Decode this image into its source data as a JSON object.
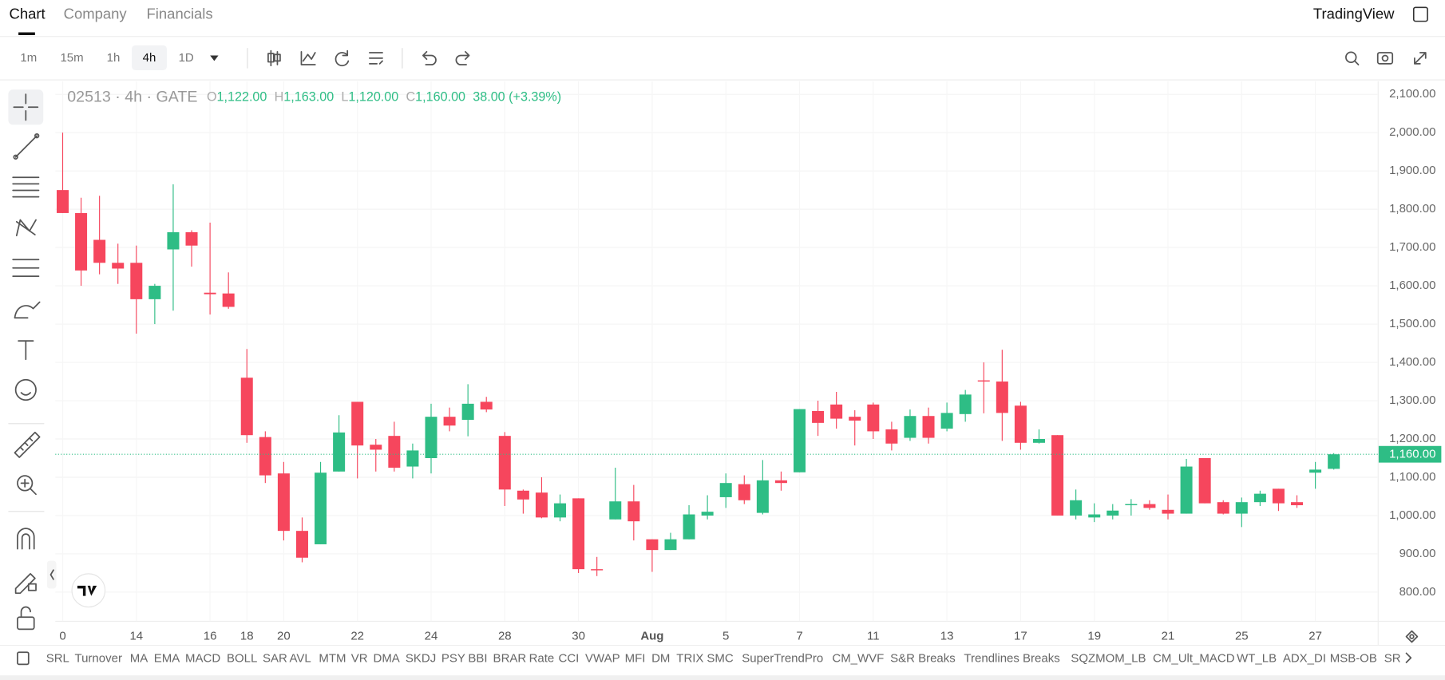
{
  "tabs": [
    "Chart",
    "Company",
    "Financials"
  ],
  "brand": "TradingView",
  "intervals": [
    "1m",
    "15m",
    "1h",
    "4h",
    "1D"
  ],
  "legend": {
    "symbol": "02513 · 4h · GATE",
    "o": "O",
    "open": "1,122.00",
    "h": "H",
    "high": "1,163.00",
    "l": "L",
    "low": "1,120.00",
    "c": "C",
    "close": "1,160.00",
    "change": "38.00 (+3.39%)"
  },
  "indicators": [
    "SRL",
    "Turnover",
    "MA",
    "EMA",
    "MACD",
    "BOLL",
    "SAR",
    "AVL",
    "MTM",
    "VR",
    "DMA",
    "SKDJ",
    "PSY",
    "BBI",
    "BRAR",
    "Rate",
    "CCI",
    "VWAP",
    "MFI",
    "DM",
    "TRIX",
    "SMC",
    "SuperTrendPro",
    "CM_WVF",
    "S&R Breaks",
    "Trendlines Breaks",
    "SQZMOM_LB",
    "CM_Ult_MACD",
    "WT_LB",
    "ADX_DI",
    "MSB-OB",
    "SR"
  ],
  "chart_data": {
    "type": "candlestick",
    "categories": [
      "0",
      null,
      null,
      null,
      "14",
      null,
      null,
      null,
      "16",
      null,
      "18",
      null,
      "20",
      null,
      null,
      null,
      "22",
      null,
      null,
      null,
      "24",
      null,
      null,
      null,
      "28",
      null,
      null,
      null,
      "30",
      null,
      null,
      null,
      "Aug",
      null,
      null,
      null,
      "5",
      null,
      null,
      null,
      "7",
      null,
      null,
      null,
      "11",
      null,
      null,
      null,
      "13",
      null,
      null,
      null,
      "17",
      null,
      null,
      null,
      "19",
      null,
      null,
      null,
      "21",
      null,
      null,
      null,
      "25",
      null,
      null,
      null,
      "27",
      null
    ],
    "open": [
      1850,
      1790,
      1720,
      1660,
      1660,
      1565,
      1695,
      1740,
      1582,
      1580,
      1360,
      1205,
      1110,
      960,
      925,
      1115,
      1297,
      1185,
      1208,
      1128,
      1150,
      1258,
      1250,
      1297,
      1208,
      1065,
      1060,
      995,
      1045,
      860,
      990,
      1037,
      938,
      910,
      938,
      1000,
      1048,
      1082,
      1007,
      1092,
      1113,
      1273,
      1290,
      1258,
      1290,
      1225,
      1203,
      1260,
      1227,
      1265,
      1353,
      1350,
      1287,
      1190,
      1210,
      1000,
      995,
      1000,
      1027,
      1030,
      1015,
      1005,
      1150,
      1035,
      1005,
      1035,
      1070,
      1035,
      1112,
      1122
    ],
    "high": [
      2000,
      1830,
      1835,
      1710,
      1705,
      1605,
      1865,
      1745,
      1765,
      1635,
      1435,
      1220,
      1140,
      995,
      1140,
      1262,
      1297,
      1200,
      1245,
      1188,
      1292,
      1282,
      1343,
      1310,
      1218,
      1068,
      1100,
      1055,
      1045,
      892,
      1125,
      1080,
      938,
      955,
      1027,
      1053,
      1110,
      1105,
      1145,
      1115,
      1278,
      1300,
      1323,
      1275,
      1295,
      1245,
      1277,
      1282,
      1295,
      1328,
      1400,
      1433,
      1297,
      1225,
      1210,
      1068,
      1032,
      1030,
      1043,
      1040,
      1055,
      1148,
      1150,
      1040,
      1047,
      1065,
      1070,
      1053,
      1140,
      1163
    ],
    "low": [
      1790,
      1600,
      1630,
      1605,
      1475,
      1500,
      1535,
      1650,
      1525,
      1540,
      1190,
      1085,
      935,
      878,
      925,
      1115,
      1097,
      1115,
      1115,
      1097,
      1110,
      1220,
      1207,
      1270,
      1025,
      1005,
      993,
      985,
      850,
      842,
      990,
      935,
      853,
      910,
      938,
      990,
      1020,
      1030,
      1003,
      1065,
      1113,
      1208,
      1227,
      1183,
      1200,
      1170,
      1195,
      1188,
      1220,
      1245,
      1267,
      1195,
      1172,
      1188,
      1000,
      990,
      983,
      990,
      1000,
      1015,
      990,
      1005,
      1032,
      1003,
      970,
      1025,
      1012,
      1020,
      1070,
      1120
    ],
    "close": [
      1790,
      1640,
      1660,
      1645,
      1565,
      1600,
      1740,
      1705,
      1578,
      1545,
      1210,
      1105,
      960,
      890,
      1112,
      1217,
      1183,
      1172,
      1125,
      1170,
      1258,
      1235,
      1292,
      1277,
      1068,
      1042,
      995,
      1032,
      860,
      857,
      1037,
      985,
      910,
      938,
      1003,
      1010,
      1085,
      1040,
      1092,
      1085,
      1278,
      1242,
      1253,
      1248,
      1220,
      1188,
      1260,
      1203,
      1268,
      1316,
      1350,
      1268,
      1190,
      1200,
      1000,
      1040,
      1003,
      1013,
      1030,
      1020,
      1005,
      1128,
      1032,
      1005,
      1035,
      1057,
      1032,
      1027,
      1120,
      1160
    ],
    "up_color": "#2ebd85",
    "down_color": "#f6465d",
    "ylim": [
      725,
      2134
    ],
    "yticks": [
      {
        "value": 800,
        "label": "800.00"
      },
      {
        "value": 900,
        "label": "900.00"
      },
      {
        "value": 1000,
        "label": "1,000.00"
      },
      {
        "value": 1100,
        "label": "1,100.00"
      },
      {
        "value": 1200,
        "label": "1,200.00"
      },
      {
        "value": 1300,
        "label": "1,300.00"
      },
      {
        "value": 1400,
        "label": "1,400.00"
      },
      {
        "value": 1500,
        "label": "1,500.00"
      },
      {
        "value": 1600,
        "label": "1,600.00"
      },
      {
        "value": 1700,
        "label": "1,700.00"
      },
      {
        "value": 1800,
        "label": "1,800.00"
      },
      {
        "value": 1900,
        "label": "1,900.00"
      },
      {
        "value": 2000,
        "label": "2,000.00"
      },
      {
        "value": 2100,
        "label": "2,100.00"
      }
    ],
    "last_price": {
      "value": 1160,
      "label": "1,160.00"
    },
    "grid": true
  }
}
